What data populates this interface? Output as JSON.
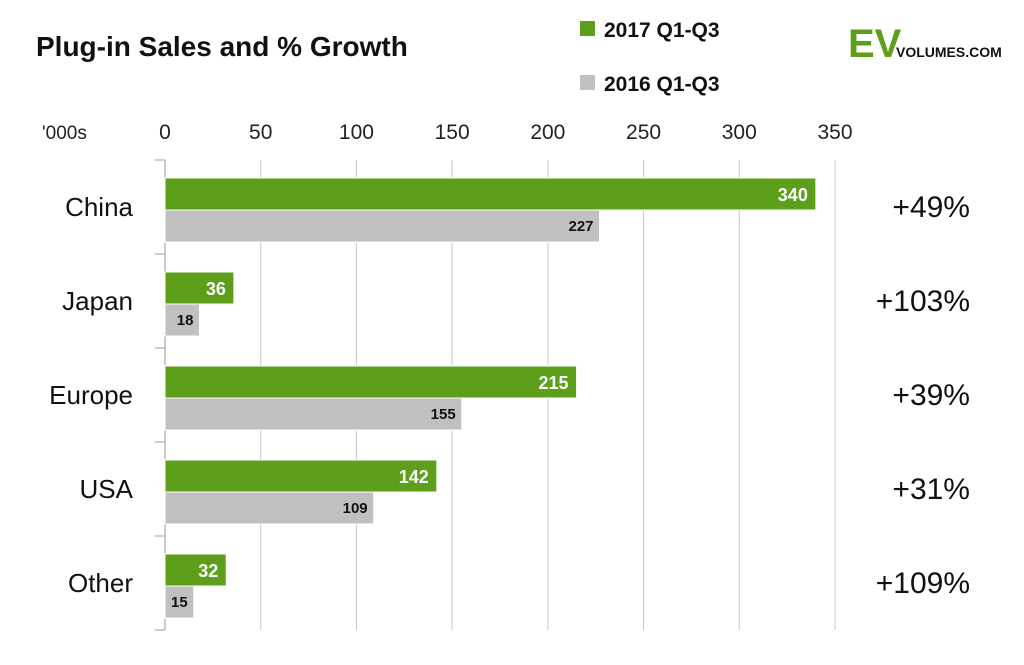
{
  "chart_data": {
    "type": "bar",
    "orientation": "horizontal",
    "title": "Plug-in Sales and % Growth",
    "unit_label": "'000s",
    "xlim": [
      0,
      350
    ],
    "x_ticks": [
      0,
      50,
      100,
      150,
      200,
      250,
      300,
      350
    ],
    "grid": true,
    "legend_position": "top",
    "categories": [
      "China",
      "Japan",
      "Europe",
      "USA",
      "Other"
    ],
    "series": [
      {
        "name": "2017 Q1-Q3",
        "color": "#5d9e1a",
        "values": [
          340,
          36,
          215,
          142,
          32
        ]
      },
      {
        "name": "2016 Q1-Q3",
        "color": "#c0c0c0",
        "values": [
          227,
          18,
          155,
          109,
          15
        ]
      }
    ],
    "growth": [
      "+49%",
      "+103%",
      "+39%",
      "+31%",
      "+109%"
    ]
  },
  "logo": {
    "ev": "EV",
    "rest": "VOLUMES.COM",
    "ev_color": "#5d9e1a"
  }
}
